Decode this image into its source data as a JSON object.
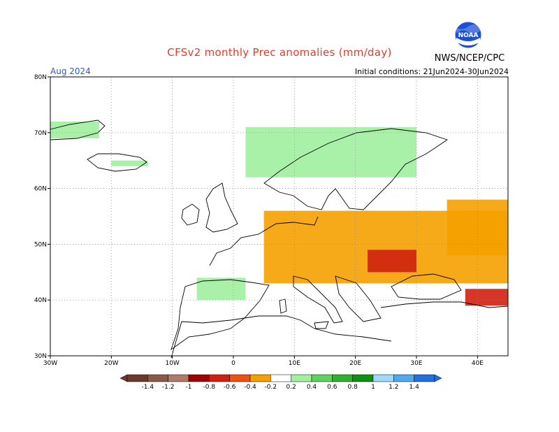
{
  "header": {
    "title": "CFSv2 monthly Prec anomalies (mm/day)",
    "agency": "NWS/NCEP/CPC",
    "logo_text": "NOAA",
    "month": "Aug 2024",
    "initial_conditions": "Initial conditions: 21Jun2024-30Jun2024"
  },
  "map": {
    "region": "Europe",
    "lon_range": [
      -30,
      45
    ],
    "lat_range": [
      30,
      80
    ],
    "lon_ticks": [
      {
        "lon": -30,
        "label": "30W"
      },
      {
        "lon": -20,
        "label": "20W"
      },
      {
        "lon": -10,
        "label": "10W"
      },
      {
        "lon": 0,
        "label": "0"
      },
      {
        "lon": 10,
        "label": "10E"
      },
      {
        "lon": 20,
        "label": "20E"
      },
      {
        "lon": 30,
        "label": "30E"
      },
      {
        "lon": 40,
        "label": "40E"
      }
    ],
    "lat_ticks": [
      {
        "lat": 30,
        "label": "30N"
      },
      {
        "lat": 40,
        "label": "40N"
      },
      {
        "lat": 50,
        "label": "50N"
      },
      {
        "lat": 60,
        "label": "60N"
      },
      {
        "lat": 70,
        "label": "70N"
      },
      {
        "lat": 80,
        "label": "80N"
      }
    ],
    "grid": true
  },
  "colorbar": {
    "labels": [
      "-1.4",
      "-1.2",
      "-1",
      "-0.8",
      "-0.6",
      "-0.4",
      "-0.2",
      "0.2",
      "0.4",
      "0.6",
      "0.8",
      "1",
      "1.2",
      "1.4"
    ],
    "colors": [
      "#6b3a2a",
      "#8a5a48",
      "#b07a68",
      "#a00000",
      "#d02010",
      "#f05010",
      "#f5a000",
      "#ffffff",
      "#a0f0a0",
      "#60d060",
      "#30b030",
      "#109010",
      "#a0d8f8",
      "#50a8f0",
      "#2070e0"
    ]
  },
  "anomaly_areas": [
    {
      "name": "wet-scandinavia-coast",
      "color": "#a0f0a0",
      "lon": [
        2,
        30
      ],
      "lat": [
        62,
        71
      ]
    },
    {
      "name": "wet-iceland",
      "color": "#a0f0a0",
      "lon": [
        -20,
        -14
      ],
      "lat": [
        64,
        65
      ]
    },
    {
      "name": "wet-greenland",
      "color": "#a0f0a0",
      "lon": [
        -30,
        -22
      ],
      "lat": [
        69,
        72
      ]
    },
    {
      "name": "wet-iberia-north",
      "color": "#a0f0a0",
      "lon": [
        -6,
        2
      ],
      "lat": [
        40,
        44
      ]
    },
    {
      "name": "dry-central-europe",
      "color": "#f5a000",
      "lon": [
        5,
        45
      ],
      "lat": [
        43,
        56
      ]
    },
    {
      "name": "strong-dry-carpathians",
      "color": "#d02010",
      "lon": [
        22,
        30
      ],
      "lat": [
        45,
        49
      ]
    },
    {
      "name": "dry-russia",
      "color": "#f5a000",
      "lon": [
        35,
        45
      ],
      "lat": [
        48,
        58
      ]
    },
    {
      "name": "dry-turkey-east",
      "color": "#d02010",
      "lon": [
        38,
        45
      ],
      "lat": [
        39,
        42
      ]
    }
  ]
}
